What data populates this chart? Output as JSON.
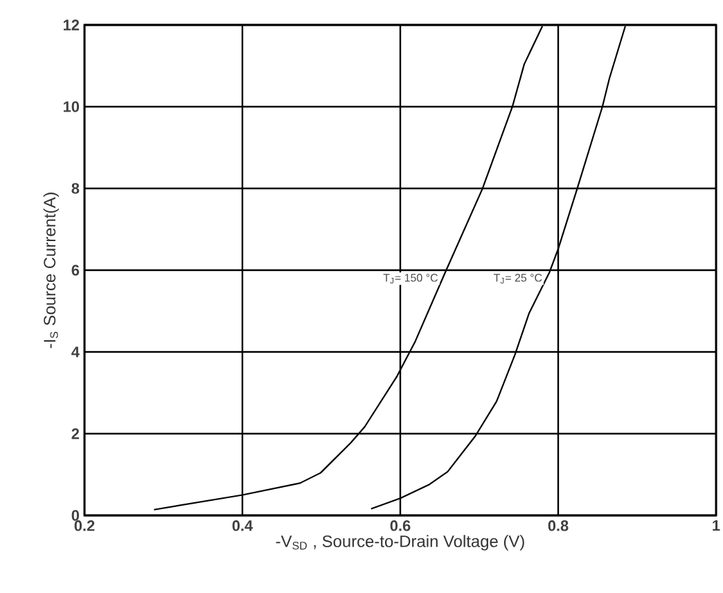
{
  "chart_data": {
    "type": "line",
    "xlabel": "-V$_{SD}$ , Source-to-Drain Voltage (V)",
    "ylabel": "-I$_{S}$ Source Current(A)",
    "xlim": [
      0.2,
      1
    ],
    "ylim": [
      0,
      12
    ],
    "xticks": [
      0.2,
      0.4,
      0.6,
      0.8,
      1
    ],
    "yticks": [
      0,
      2,
      4,
      6,
      8,
      10,
      12
    ],
    "grid": true,
    "series": [
      {
        "name": "T$_{J}$= 150 °C",
        "color": "#000000",
        "x": [
          0.288,
          0.4,
          0.473,
          0.499,
          0.537,
          0.555,
          0.596,
          0.619,
          0.657,
          0.704,
          0.742,
          0.757,
          0.78
        ],
        "values": [
          0.14,
          0.5,
          0.79,
          1.04,
          1.77,
          2.17,
          3.41,
          4.26,
          5.95,
          7.99,
          10.0,
          11.04,
          11.97
        ]
      },
      {
        "name": "T$_{J}$= 25 °C",
        "color": "#000000",
        "x": [
          0.563,
          0.6,
          0.637,
          0.66,
          0.695,
          0.722,
          0.745,
          0.763,
          0.789,
          0.8,
          0.824,
          0.856,
          0.865,
          0.885
        ],
        "values": [
          0.16,
          0.42,
          0.76,
          1.07,
          1.94,
          2.79,
          3.92,
          4.94,
          5.95,
          6.52,
          7.99,
          10.0,
          10.7,
          11.97
        ]
      }
    ]
  }
}
